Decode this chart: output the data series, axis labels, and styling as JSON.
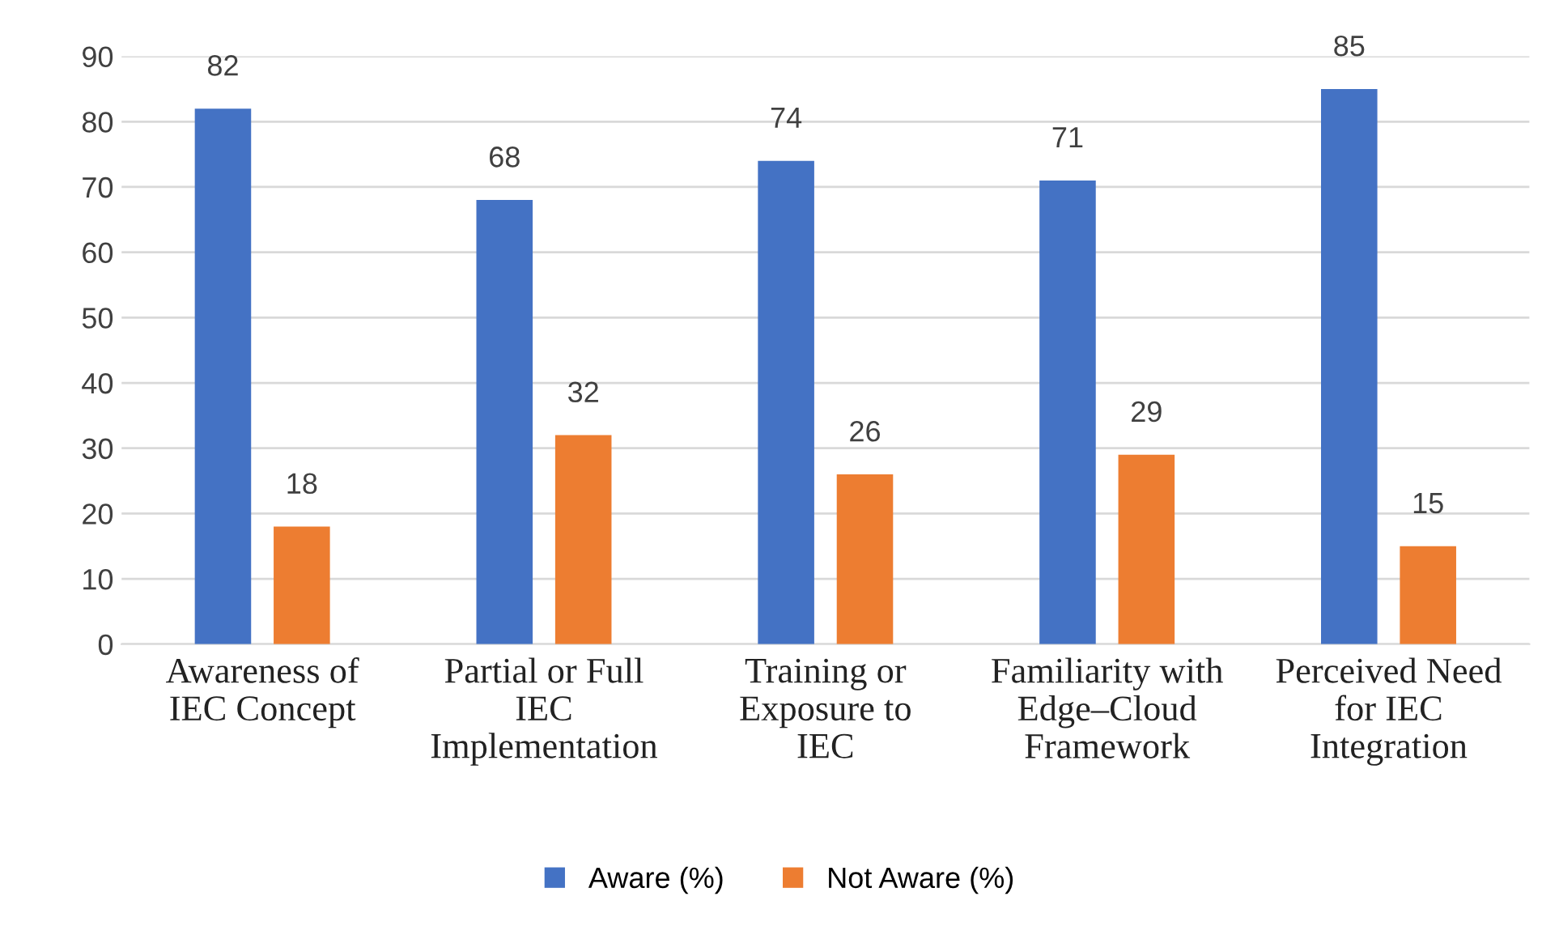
{
  "chart_data": {
    "type": "bar",
    "categories": [
      "Awareness of\nIEC Concept",
      "Partial or Full\nIEC\nImplementation",
      "Training or\nExposure to\nIEC",
      "Familiarity with\nEdge–Cloud\nFramework",
      "Perceived Need\nfor IEC\nIntegration"
    ],
    "series": [
      {
        "name": "Aware (%)",
        "color": "#4472c4",
        "values": [
          82,
          68,
          74,
          71,
          85
        ]
      },
      {
        "name": "Not Aware (%)",
        "color": "#ed7d31",
        "values": [
          18,
          32,
          26,
          29,
          15
        ]
      }
    ],
    "ylim": [
      0,
      90
    ],
    "yticks": [
      0,
      10,
      20,
      30,
      40,
      50,
      60,
      70,
      80,
      90
    ],
    "grid": "y",
    "legend": "bottom",
    "data_labels": true
  }
}
